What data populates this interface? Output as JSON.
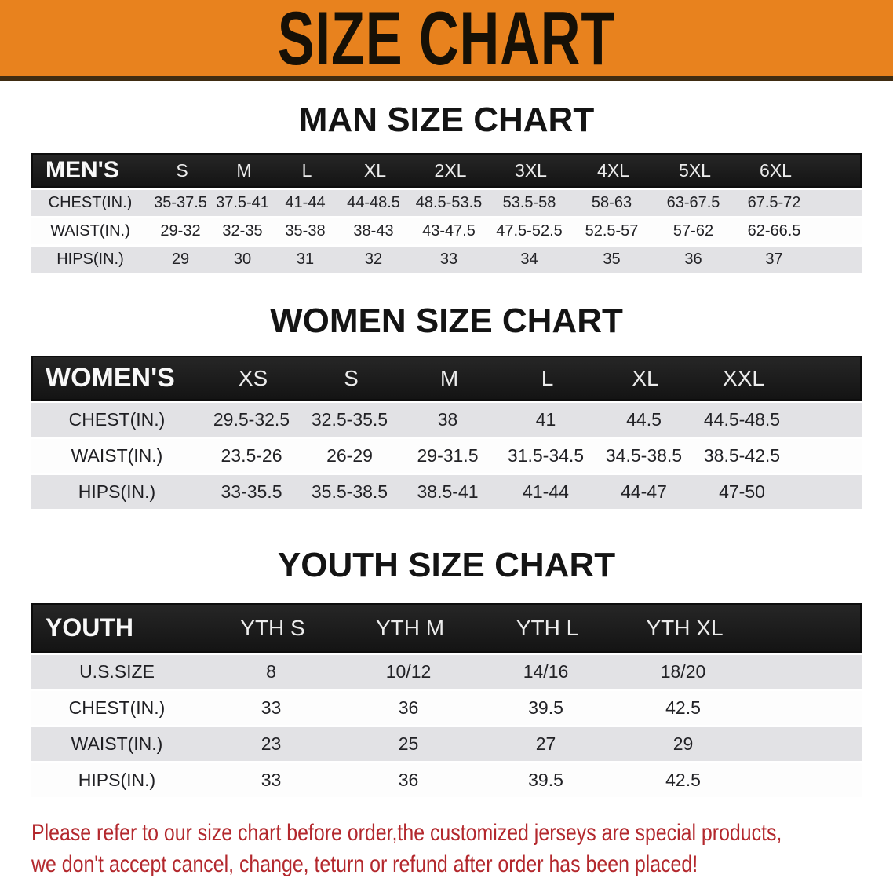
{
  "banner": {
    "title": "SIZE CHART",
    "bg_color": "#e8821e",
    "text_color": "#161006"
  },
  "sections": [
    {
      "id": "men",
      "title": "MAN SIZE CHART",
      "label_header": "MEN'S",
      "columns": [
        "S",
        "M",
        "L",
        "XL",
        "2XL",
        "3XL",
        "4XL",
        "5XL",
        "6XL"
      ],
      "rows": [
        {
          "label": "CHEST(IN.)",
          "values": [
            "35-37.5",
            "37.5-41",
            "41-44",
            "44-48.5",
            "48.5-53.5",
            "53.5-58",
            "58-63",
            "63-67.5",
            "67.5-72"
          ]
        },
        {
          "label": "WAIST(IN.)",
          "values": [
            "29-32",
            "32-35",
            "35-38",
            "38-43",
            "43-47.5",
            "47.5-52.5",
            "52.5-57",
            "57-62",
            "62-66.5"
          ]
        },
        {
          "label": "HIPS(IN.)",
          "values": [
            "29",
            "30",
            "31",
            "32",
            "33",
            "34",
            "35",
            "36",
            "37"
          ]
        }
      ]
    },
    {
      "id": "women",
      "title": "WOMEN SIZE CHART",
      "label_header": "WOMEN'S",
      "columns": [
        "XS",
        "S",
        "M",
        "L",
        "XL",
        "XXL"
      ],
      "rows": [
        {
          "label": "CHEST(IN.)",
          "values": [
            "29.5-32.5",
            "32.5-35.5",
            "38",
            "41",
            "44.5",
            "44.5-48.5"
          ]
        },
        {
          "label": "WAIST(IN.)",
          "values": [
            "23.5-26",
            "26-29",
            "29-31.5",
            "31.5-34.5",
            "34.5-38.5",
            "38.5-42.5"
          ]
        },
        {
          "label": "HIPS(IN.)",
          "values": [
            "33-35.5",
            "35.5-38.5",
            "38.5-41",
            "41-44",
            "44-47",
            "47-50"
          ]
        }
      ]
    },
    {
      "id": "youth",
      "title": "YOUTH SIZE CHART",
      "label_header": "YOUTH",
      "columns": [
        "YTH S",
        "YTH M",
        "YTH L",
        "YTH XL"
      ],
      "rows": [
        {
          "label": "U.S.SIZE",
          "values": [
            "8",
            "10/12",
            "14/16",
            "18/20"
          ]
        },
        {
          "label": "CHEST(IN.)",
          "values": [
            "33",
            "36",
            "39.5",
            "42.5"
          ]
        },
        {
          "label": "WAIST(IN.)",
          "values": [
            "23",
            "25",
            "27",
            "29"
          ]
        },
        {
          "label": "HIPS(IN.)",
          "values": [
            "33",
            "36",
            "39.5",
            "42.5"
          ]
        }
      ]
    }
  ],
  "disclaimer": {
    "line1": "Please refer to our size chart before order,the customized jerseys are special products,",
    "line2": "we don't accept cancel, change, teturn or refund after order has been placed!",
    "color": "#b3282d"
  },
  "colors": {
    "header_bar_bg": "#1a1a1a",
    "header_bar_text": "#f8f8f8",
    "stripe_gray": "#e2e2e5",
    "stripe_white": "#fdfdfd"
  }
}
